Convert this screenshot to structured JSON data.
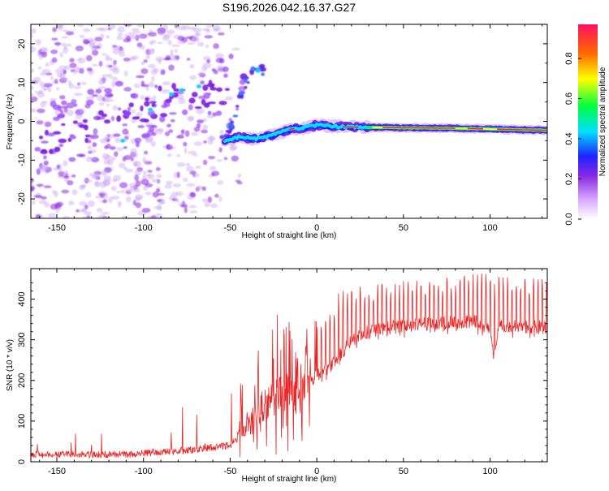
{
  "title": "S196.2026.042.16.37.G27",
  "chart_data": [
    {
      "type": "heatmap",
      "name": "spectrogram",
      "xlabel": "Height of straight line (km)",
      "ylabel": "Frequency (Hz)",
      "xlim": [
        -165,
        133
      ],
      "ylim": [
        -25,
        25
      ],
      "xticks": [
        -150,
        -100,
        -50,
        0,
        50,
        100
      ],
      "yticks": [
        20,
        10,
        0,
        -10,
        -20
      ],
      "colorbar": {
        "label": "Normalized spectral amplitude",
        "range": [
          0,
          0.97
        ],
        "ticks": [
          0.0,
          0.2,
          0.4,
          0.6,
          0.8
        ]
      },
      "features": [
        {
          "name": "diffuse-noise-band",
          "x_range": [
            -165,
            -60
          ],
          "freq_trend": [
            [
              -160,
              -5
            ],
            [
              -120,
              0
            ],
            [
              -90,
              5
            ],
            [
              -60,
              8
            ]
          ],
          "amplitude": 0.12
        },
        {
          "name": "rising-branch",
          "x_range": [
            -55,
            -30
          ],
          "freq_trend": [
            [
              -52,
              -5
            ],
            [
              -45,
              5
            ],
            [
              -38,
              13
            ]
          ],
          "amplitude": 0.2
        },
        {
          "name": "main-trace",
          "points": [
            [
              -53,
              -5.0
            ],
            [
              -45,
              -4.0
            ],
            [
              -35,
              -4.5
            ],
            [
              -25,
              -3.5
            ],
            [
              -15,
              -2.0
            ],
            [
              -5,
              -1.5
            ],
            [
              0,
              -1.0
            ],
            [
              10,
              -1.3
            ],
            [
              20,
              -1.5
            ],
            [
              40,
              -1.6
            ],
            [
              60,
              -1.7
            ],
            [
              80,
              -1.8
            ],
            [
              100,
              -2.0
            ],
            [
              120,
              -2.2
            ],
            [
              133,
              -2.3
            ]
          ]
        }
      ]
    },
    {
      "type": "line",
      "name": "snr-trace",
      "xlabel": "Height of straight line (km)",
      "ylabel": "SNR (10 * v/v)",
      "xlim": [
        -165,
        133
      ],
      "ylim": [
        0,
        475
      ],
      "xticks": [
        -150,
        -100,
        -50,
        0,
        50,
        100
      ],
      "yticks": [
        0,
        100,
        200,
        300,
        400
      ],
      "series": [
        {
          "name": "SNR",
          "color": "#ee2222",
          "envelope": [
            [
              -165,
              18
            ],
            [
              -110,
              18
            ],
            [
              -70,
              30
            ],
            [
              -50,
              40
            ],
            [
              -40,
              90
            ],
            [
              -30,
              140
            ],
            [
              -20,
              170
            ],
            [
              -10,
              190
            ],
            [
              0,
              210
            ],
            [
              10,
              245
            ],
            [
              20,
              300
            ],
            [
              30,
              320
            ],
            [
              50,
              335
            ],
            [
              70,
              340
            ],
            [
              90,
              345
            ],
            [
              100,
              330
            ],
            [
              102,
              260
            ],
            [
              105,
              335
            ],
            [
              133,
              330
            ]
          ],
          "spike_peaks": [
            [
              -155,
              55
            ],
            [
              -100,
              110
            ],
            [
              -45,
              190
            ],
            [
              -30,
              320
            ],
            [
              -20,
              380
            ],
            [
              -10,
              300
            ],
            [
              5,
              400
            ],
            [
              20,
              430
            ],
            [
              40,
              440
            ],
            [
              60,
              450
            ],
            [
              80,
              455
            ],
            [
              100,
              470
            ],
            [
              120,
              460
            ]
          ]
        }
      ]
    }
  ]
}
